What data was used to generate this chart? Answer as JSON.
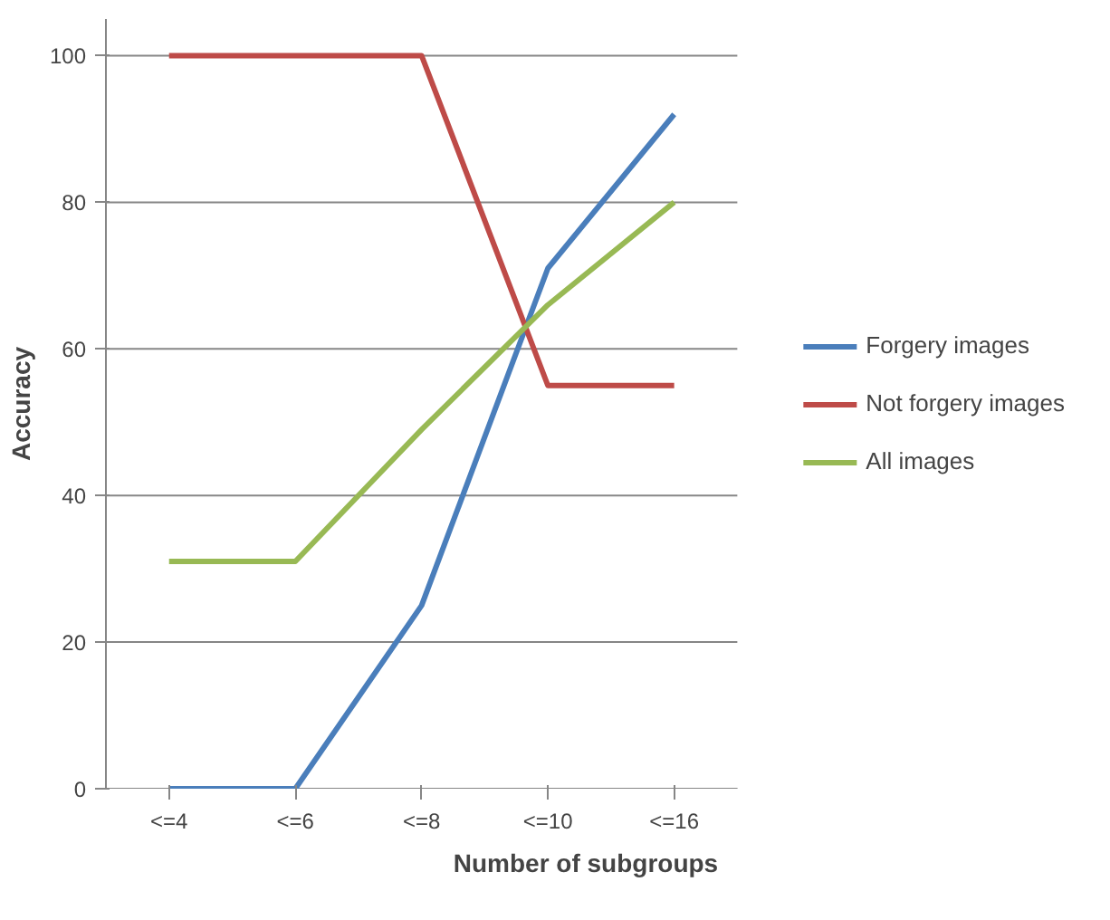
{
  "chart_data": {
    "type": "line",
    "xlabel": "Number of subgroups",
    "ylabel": "Accuracy",
    "categories": [
      "<=4",
      "<=6",
      "<=8",
      "<=10",
      "<=16"
    ],
    "series": [
      {
        "name": "Forgery images",
        "color": "#4a7ebb",
        "values": [
          0,
          0,
          25,
          71,
          92
        ]
      },
      {
        "name": "Not forgery images",
        "color": "#be4b48",
        "values": [
          100,
          100,
          100,
          55,
          55
        ]
      },
      {
        "name": "All images",
        "color": "#98b954",
        "values": [
          31,
          31,
          49,
          66,
          80
        ]
      }
    ],
    "ylim": [
      0,
      105
    ],
    "yticks": [
      0,
      20,
      40,
      60,
      80,
      100
    ],
    "grid": "y",
    "legend": "right",
    "marker": "none",
    "line_style": "solid"
  }
}
